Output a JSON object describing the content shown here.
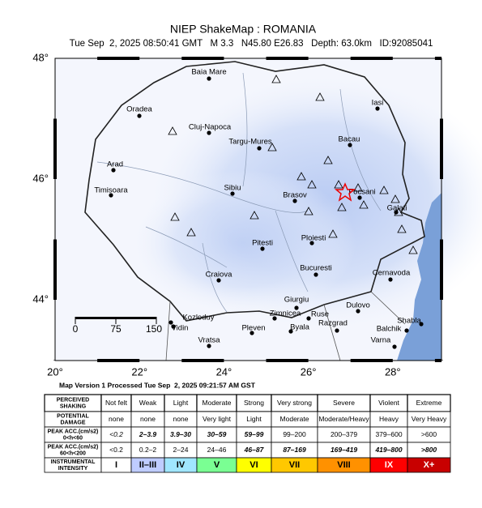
{
  "header": {
    "title": "NIEP ShakeMap : ROMANIA",
    "subtitle": "Tue Sep  2, 2025 08:50:41 GMT   M 3.3   N45.80 E26.83   Depth: 63.0km   ID:92085041"
  },
  "map": {
    "lat_ticks": [
      "48°",
      "46°",
      "44°"
    ],
    "lon_ticks": [
      "20°",
      "22°",
      "24°",
      "26°",
      "28°"
    ],
    "scale_labels": [
      "0",
      "75",
      "150"
    ],
    "cities": [
      "Baia Mare",
      "Oradea",
      "Cluj-Napoca",
      "Targu-Mures",
      "Bacau",
      "Iasi",
      "Arad",
      "Timisoara",
      "Sibiu",
      "Brasov",
      "Focsani",
      "Galati",
      "Ploiesti",
      "Pitesti",
      "Craiova",
      "Bucuresti",
      "Cernavoda",
      "Giurgiu",
      "Zimnicea",
      "Ruse",
      "Dulovo",
      "Kozloduy",
      "Vidin",
      "Pleven",
      "Byala",
      "Razgrad",
      "Shabla",
      "Balchik",
      "Varna",
      "Vratsa"
    ]
  },
  "footer": "Map Version 1 Processed Tue Sep  2, 2025 09:21:57 AM GST",
  "table": {
    "rows": [
      [
        [
          "PERCEIVED",
          "SHAKING"
        ],
        "Not felt",
        "Weak",
        "Light",
        "Moderate",
        "Strong",
        "Very strong",
        "Severe",
        "Violent",
        "Extreme"
      ],
      [
        [
          "POTENTIAL",
          "DAMAGE"
        ],
        "none",
        "none",
        "none",
        "Very light",
        "Light",
        "Moderate",
        "Moderate/Heavy",
        "Heavy",
        "Very Heavy"
      ],
      [
        [
          "PEAK ACC.(cm/s2)",
          "0<h<60"
        ],
        "<0.2",
        "2–3.9",
        "3.9–30",
        "30–59",
        "59–99",
        "99–200",
        "200–379",
        "379–600",
        ">600"
      ],
      [
        [
          "PEAK ACC.(cm/s2)",
          "60<h<200"
        ],
        "<0.2",
        "0.2–2",
        "2–24",
        "24–46",
        "46–87",
        "87–169",
        "169–419",
        "419–800",
        ">800"
      ],
      [
        [
          "INSTRUMENTAL",
          "INTENSITY"
        ],
        "I",
        "II–III",
        "IV",
        "V",
        "VI",
        "VII",
        "VIII",
        "IX",
        "X+"
      ]
    ]
  }
}
